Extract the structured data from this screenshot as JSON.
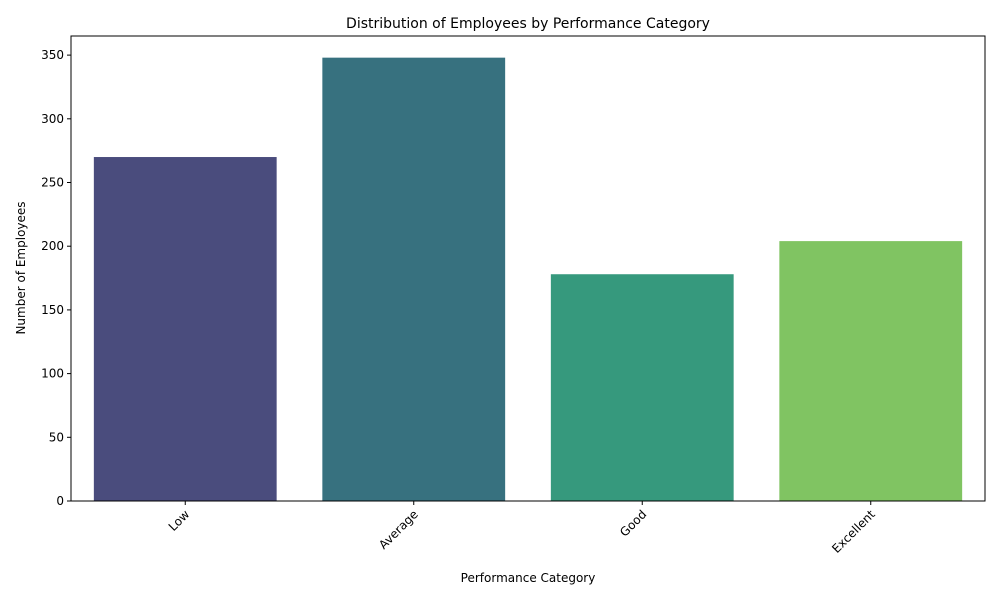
{
  "chart_data": {
    "type": "bar",
    "title": "Distribution of Employees by Performance Category",
    "xlabel": "Performance Category",
    "ylabel": "Number of Employees",
    "categories": [
      "Low",
      "Average",
      "Good",
      "Excellent"
    ],
    "values": [
      270,
      348,
      178,
      204
    ],
    "colors": [
      "#4a4c7d",
      "#37717f",
      "#36997d",
      "#80c462"
    ],
    "ylim": [
      0,
      365
    ],
    "yticks": [
      0,
      50,
      100,
      150,
      200,
      250,
      300,
      350
    ],
    "grid": false,
    "legend": "none"
  }
}
